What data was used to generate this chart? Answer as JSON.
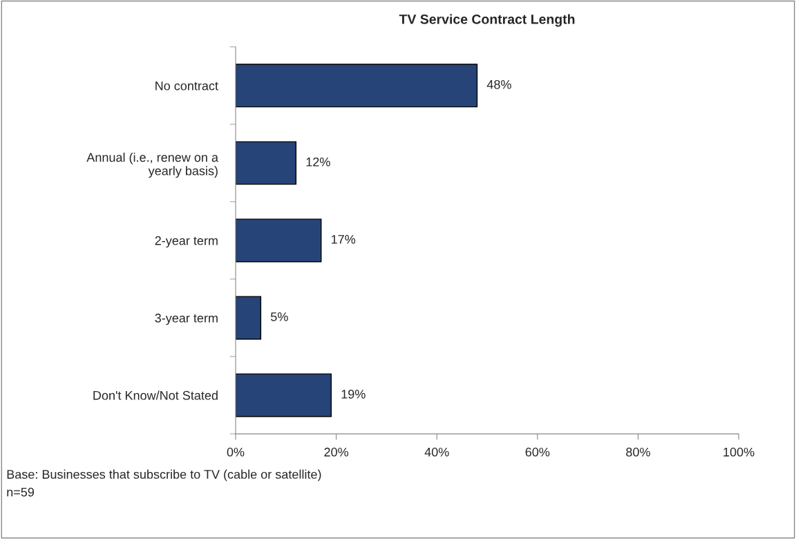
{
  "chart_data": {
    "type": "bar",
    "orientation": "horizontal",
    "title": "TV Service Contract Length",
    "categories": [
      "No contract",
      "Annual (i.e., renew on a\nyearly basis)",
      "2-year term",
      "3-year term",
      "Don't Know/Not Stated"
    ],
    "values": [
      48,
      12,
      17,
      5,
      19
    ],
    "value_labels": [
      "48%",
      "12%",
      "17%",
      "5%",
      "19%"
    ],
    "color": "#264478",
    "xlim": [
      0,
      100
    ],
    "xticks": [
      {
        "value": 0,
        "label": "0%"
      },
      {
        "value": 20,
        "label": "20%"
      },
      {
        "value": 40,
        "label": "40%"
      },
      {
        "value": 60,
        "label": "60%"
      },
      {
        "value": 80,
        "label": "80%"
      },
      {
        "value": 100,
        "label": "100%"
      }
    ],
    "grid": false,
    "legend": false,
    "annotations": [
      "Base: Businesses that subscribe to TV (cable or satellite)",
      "n=59"
    ]
  }
}
